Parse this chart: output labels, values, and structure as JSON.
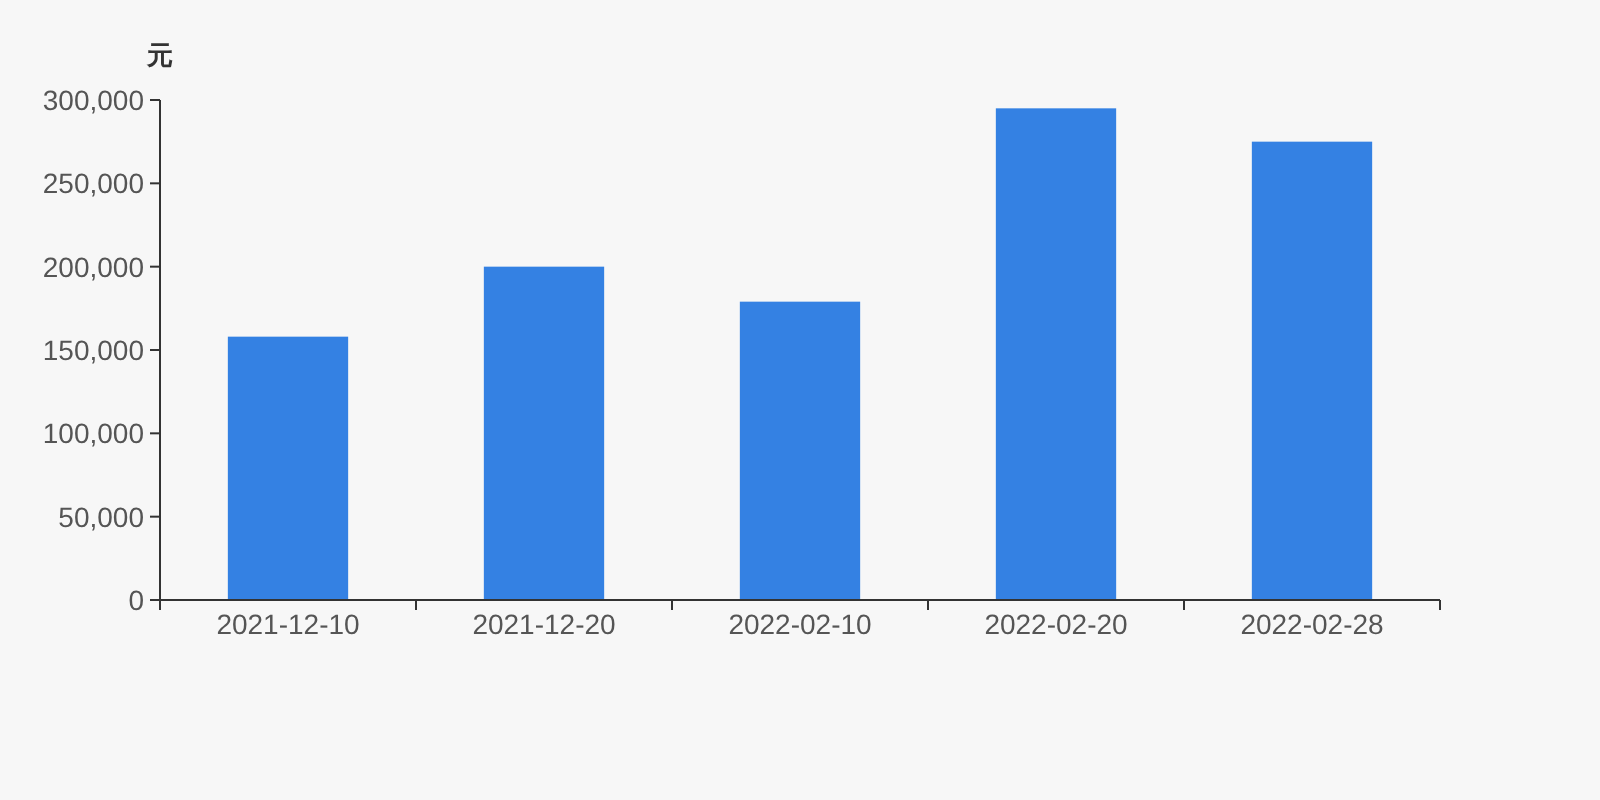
{
  "chart_data": {
    "type": "bar",
    "ylabel": "元",
    "categories": [
      "2021-12-10",
      "2021-12-20",
      "2022-02-10",
      "2022-02-20",
      "2022-02-28"
    ],
    "values": [
      158000,
      200000,
      179000,
      295000,
      275000
    ],
    "color": "#3481e3",
    "ylim": [
      0,
      300000
    ],
    "yticks": [
      {
        "value": 0,
        "label": "0"
      },
      {
        "value": 50000,
        "label": "50,000"
      },
      {
        "value": 100000,
        "label": "100,000"
      },
      {
        "value": 150000,
        "label": "150,000"
      },
      {
        "value": 200000,
        "label": "200,000"
      },
      {
        "value": 250000,
        "label": "250,000"
      },
      {
        "value": 300000,
        "label": "300,000"
      }
    ]
  }
}
